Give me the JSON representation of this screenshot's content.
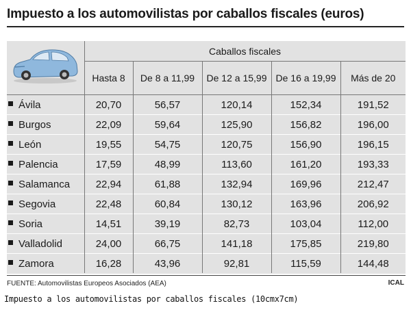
{
  "title": "Impuesto a los automovilistas por caballos fiscales (euros)",
  "table": {
    "group_header": "Caballos fiscales",
    "columns": [
      "Hasta 8",
      "De 8 a 11,99",
      "De 12 a 15,99",
      "De 16 a 19,99",
      "Más de 20"
    ],
    "rows": [
      {
        "province": "Ávila",
        "values": [
          "20,70",
          "56,57",
          "120,14",
          "152,34",
          "191,52"
        ]
      },
      {
        "province": "Burgos",
        "values": [
          "22,09",
          "59,64",
          "125,90",
          "156,82",
          "196,00"
        ]
      },
      {
        "province": "León",
        "values": [
          "19,55",
          "54,75",
          "120,75",
          "156,90",
          "196,15"
        ]
      },
      {
        "province": "Palencia",
        "values": [
          "17,59",
          "48,99",
          "113,60",
          "161,20",
          "193,33"
        ]
      },
      {
        "province": "Salamanca",
        "values": [
          "22,94",
          "61,88",
          "132,94",
          "169,96",
          "212,47"
        ]
      },
      {
        "province": "Segovia",
        "values": [
          "22,48",
          "60,84",
          "130,12",
          "163,96",
          "206,92"
        ]
      },
      {
        "province": "Soria",
        "values": [
          "14,51",
          "39,19",
          "82,73",
          "103,04",
          "112,00"
        ]
      },
      {
        "province": "Valladolid",
        "values": [
          "24,00",
          "66,75",
          "141,18",
          "175,85",
          "219,80"
        ]
      },
      {
        "province": "Zamora",
        "values": [
          "16,28",
          "43,96",
          "92,81",
          "115,59",
          "144,48"
        ]
      }
    ]
  },
  "footer": {
    "source": "FUENTE: Automovilistas Europeos Asociados (AEA)",
    "agency": "ICAL"
  },
  "caption": "Impuesto a los automovilistas por caballos fiscales (10cmx7cm)",
  "colors": {
    "panel": "#e2e2e2",
    "car": "#8fb8dd"
  }
}
